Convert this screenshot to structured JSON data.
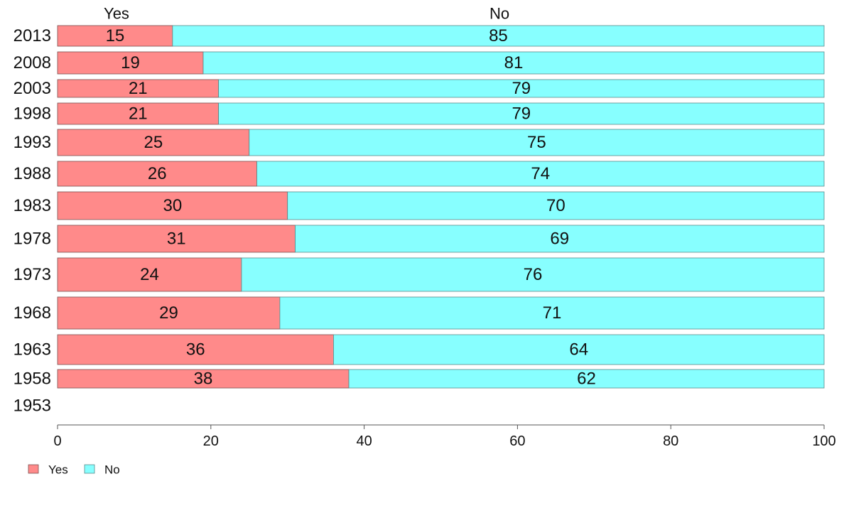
{
  "chart_data": {
    "type": "bar",
    "orientation": "horizontal",
    "stacked": true,
    "categories": [
      "2013",
      "2008",
      "2003",
      "1998",
      "1993",
      "1988",
      "1983",
      "1978",
      "1973",
      "1968",
      "1963",
      "1958",
      "1953"
    ],
    "series": [
      {
        "name": "Yes",
        "color": "#ff8a8a",
        "values": [
          15,
          19,
          21,
          21,
          25,
          26,
          30,
          31,
          24,
          29,
          36,
          38,
          null
        ]
      },
      {
        "name": "No",
        "color": "#87ffff",
        "values": [
          85,
          81,
          79,
          79,
          75,
          74,
          70,
          69,
          76,
          71,
          64,
          62,
          null
        ]
      }
    ],
    "xlim": [
      0,
      100
    ],
    "xticks": [
      0,
      20,
      40,
      60,
      80,
      100
    ],
    "top_labels": [
      "Yes",
      "No"
    ],
    "legend": {
      "position": "bottom-left",
      "entries": [
        "Yes",
        "No"
      ]
    },
    "grid": false,
    "title": "",
    "xlabel": "",
    "ylabel": ""
  }
}
